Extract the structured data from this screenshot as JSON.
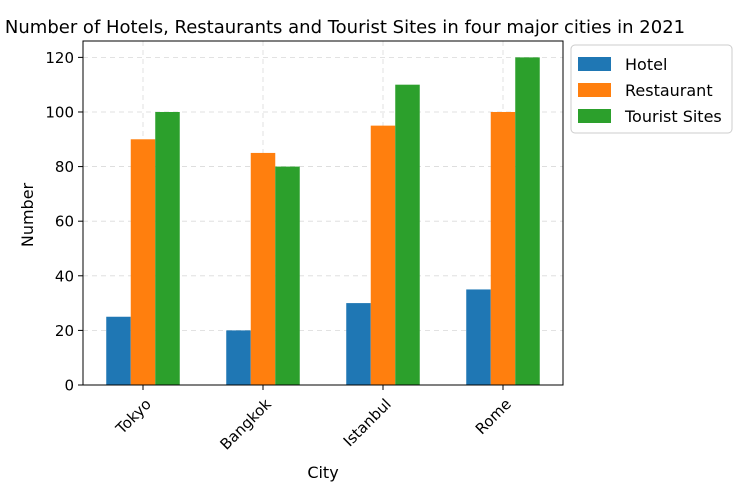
{
  "chart_data": {
    "type": "bar",
    "title": "Number of Hotels, Restaurants and Tourist Sites in four major cities in 2021",
    "xlabel": "City",
    "ylabel": "Number",
    "categories": [
      "Tokyo",
      "Bangkok",
      "Istanbul",
      "Rome"
    ],
    "series": [
      {
        "name": "Hotel",
        "color": "#1f77b4",
        "values": [
          25,
          20,
          30,
          35
        ]
      },
      {
        "name": "Restaurant",
        "color": "#ff7f0e",
        "values": [
          90,
          85,
          95,
          100
        ]
      },
      {
        "name": "Tourist Sites",
        "color": "#2ca02c",
        "values": [
          100,
          80,
          110,
          120
        ]
      }
    ],
    "ylim": [
      0,
      126
    ],
    "yticks": [
      0,
      20,
      40,
      60,
      80,
      100,
      120
    ],
    "grid": true,
    "legend_position": "outside-top-right"
  }
}
